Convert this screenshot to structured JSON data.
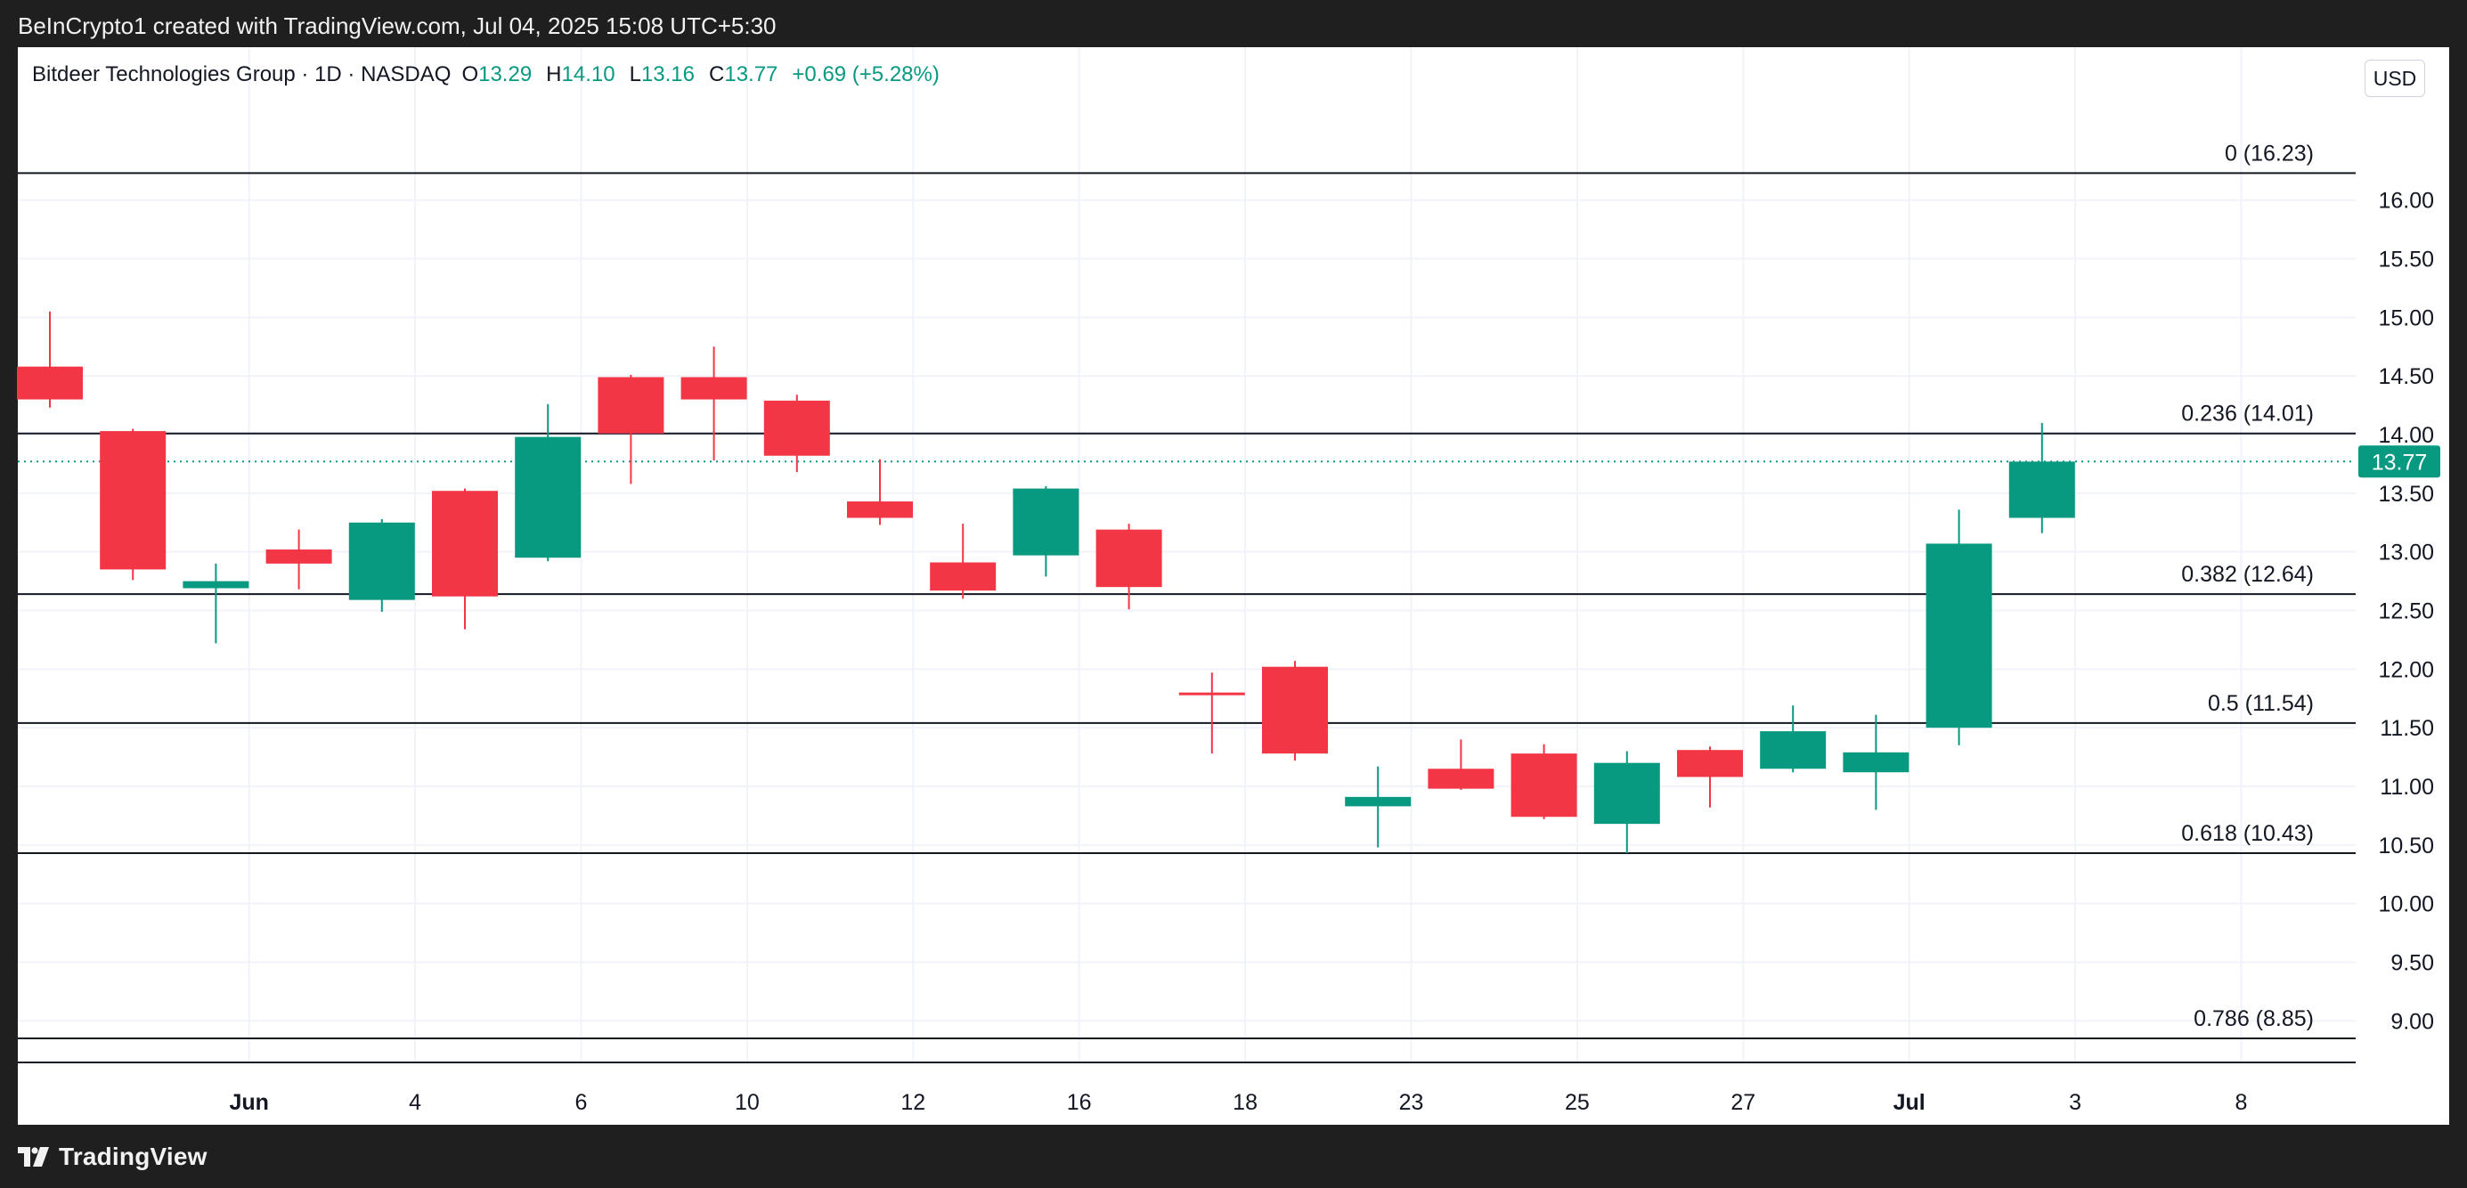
{
  "header": {
    "credit": "BeInCrypto1 created with TradingView.com, Jul 04, 2025 15:08 UTC+5:30"
  },
  "legend": {
    "symbol": "Bitdeer Technologies Group · 1D · NASDAQ",
    "open_label": "O",
    "open": "13.29",
    "high_label": "H",
    "high": "14.10",
    "low_label": "L",
    "low": "13.16",
    "close_label": "C",
    "close": "13.77",
    "change": "+0.69 (+5.28%)"
  },
  "currency_button": "USD",
  "footer": {
    "brand": "TradingView"
  },
  "colors": {
    "up": "#089981",
    "down": "#f23645",
    "grid": "#f0f3fa",
    "text": "#131722"
  },
  "chart_data": {
    "type": "candlestick",
    "y_ticks": [
      "16.00",
      "15.50",
      "15.00",
      "14.50",
      "14.00",
      "13.50",
      "13.00",
      "12.50",
      "12.00",
      "11.50",
      "11.00",
      "10.50",
      "10.00",
      "9.50",
      "9.00"
    ],
    "ylim": [
      8.75,
      16.45
    ],
    "x_tick_labels": [
      {
        "label": "Jun",
        "bold": true,
        "index": 2.4
      },
      {
        "label": "4",
        "bold": false,
        "index": 4.4
      },
      {
        "label": "6",
        "bold": false,
        "index": 6.4
      },
      {
        "label": "10",
        "bold": false,
        "index": 8.4
      },
      {
        "label": "12",
        "bold": false,
        "index": 10.4
      },
      {
        "label": "16",
        "bold": false,
        "index": 12.4
      },
      {
        "label": "18",
        "bold": false,
        "index": 14.4
      },
      {
        "label": "23",
        "bold": false,
        "index": 16.4
      },
      {
        "label": "25",
        "bold": false,
        "index": 18.4
      },
      {
        "label": "27",
        "bold": false,
        "index": 20.4
      },
      {
        "label": "Jul",
        "bold": true,
        "index": 22.4
      },
      {
        "label": "3",
        "bold": false,
        "index": 24.4
      },
      {
        "label": "8",
        "bold": false,
        "index": 26.4
      }
    ],
    "candles": [
      {
        "o": 14.58,
        "h": 15.05,
        "l": 14.23,
        "c": 14.3
      },
      {
        "o": 14.03,
        "h": 14.05,
        "l": 12.76,
        "c": 12.85
      },
      {
        "o": 12.69,
        "h": 12.9,
        "l": 12.22,
        "c": 12.75
      },
      {
        "o": 13.02,
        "h": 13.19,
        "l": 12.68,
        "c": 12.9
      },
      {
        "o": 12.59,
        "h": 13.28,
        "l": 12.49,
        "c": 13.25
      },
      {
        "o": 13.52,
        "h": 13.54,
        "l": 12.34,
        "c": 12.62
      },
      {
        "o": 12.95,
        "h": 14.26,
        "l": 12.92,
        "c": 13.98
      },
      {
        "o": 14.49,
        "h": 14.51,
        "l": 13.58,
        "c": 14.01
      },
      {
        "o": 14.49,
        "h": 14.75,
        "l": 13.78,
        "c": 14.3
      },
      {
        "o": 14.29,
        "h": 14.34,
        "l": 13.68,
        "c": 13.82
      },
      {
        "o": 13.43,
        "h": 13.79,
        "l": 13.23,
        "c": 13.29
      },
      {
        "o": 12.91,
        "h": 13.24,
        "l": 12.6,
        "c": 12.67
      },
      {
        "o": 12.97,
        "h": 13.56,
        "l": 12.79,
        "c": 13.54
      },
      {
        "o": 13.19,
        "h": 13.24,
        "l": 12.51,
        "c": 12.7
      },
      {
        "o": 11.8,
        "h": 11.97,
        "l": 11.28,
        "c": 11.79
      },
      {
        "o": 12.02,
        "h": 12.07,
        "l": 11.22,
        "c": 11.28
      },
      {
        "o": 10.83,
        "h": 11.17,
        "l": 10.48,
        "c": 10.91
      },
      {
        "o": 11.15,
        "h": 11.4,
        "l": 10.97,
        "c": 10.98
      },
      {
        "o": 11.28,
        "h": 11.36,
        "l": 10.72,
        "c": 10.74
      },
      {
        "o": 10.68,
        "h": 11.3,
        "l": 10.43,
        "c": 11.2
      },
      {
        "o": 11.31,
        "h": 11.34,
        "l": 10.82,
        "c": 11.08
      },
      {
        "o": 11.15,
        "h": 11.69,
        "l": 11.12,
        "c": 11.47
      },
      {
        "o": 11.12,
        "h": 11.61,
        "l": 10.8,
        "c": 11.29
      },
      {
        "o": 11.5,
        "h": 13.36,
        "l": 11.35,
        "c": 13.07
      },
      {
        "o": 13.29,
        "h": 14.1,
        "l": 13.16,
        "c": 13.77
      }
    ],
    "fib_levels": [
      {
        "label": "0 (16.23)",
        "value": 16.23
      },
      {
        "label": "0.236 (14.01)",
        "value": 14.01
      },
      {
        "label": "0.382 (12.64)",
        "value": 12.64
      },
      {
        "label": "0.5 (11.54)",
        "value": 11.54
      },
      {
        "label": "0.618 (10.43)",
        "value": 10.43
      },
      {
        "label": "0.786 (8.85)",
        "value": 8.85
      }
    ],
    "last_price": {
      "label": "13.77",
      "value": 13.77
    }
  }
}
